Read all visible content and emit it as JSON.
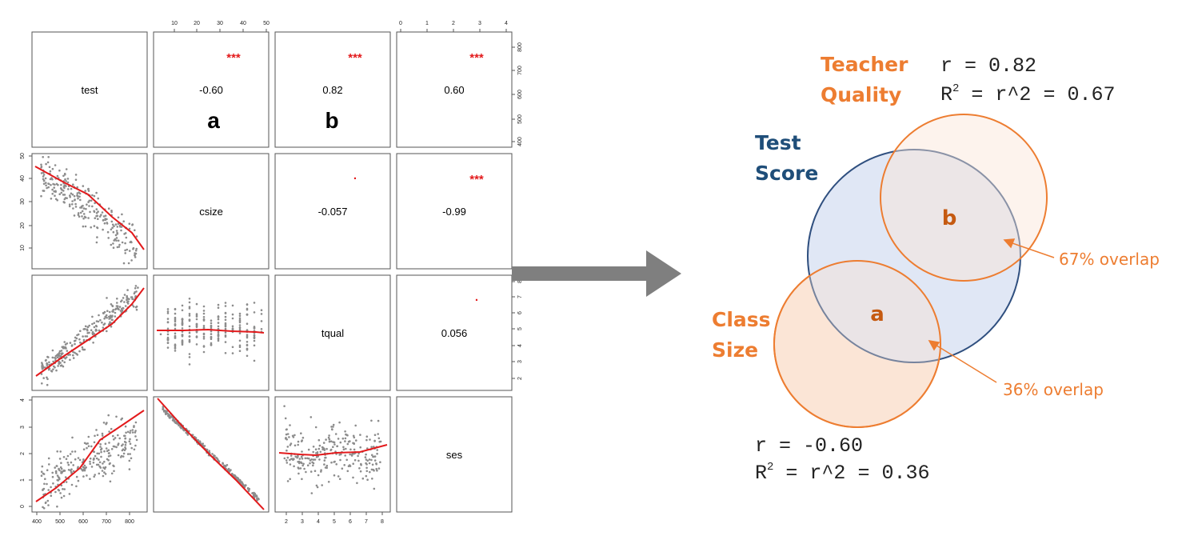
{
  "colors": {
    "orange": "#ED7D31",
    "orange_fill": "#FBE5D6",
    "navy": "#1F4E79",
    "navy_stroke": "#2F4F7F",
    "blue_fill": "#DAE3F3",
    "letter_brown": "#C55A11",
    "arrow_gray": "#7F7F7F",
    "point_gray": "#8C8C8C",
    "curve_red": "#E31A1C",
    "star_red": "#E31A1C"
  },
  "pairs_plot": {
    "variables": [
      "test",
      "csize",
      "tqual",
      "ses"
    ],
    "correlations": {
      "test_csize": {
        "value": "-0.60",
        "stars": "***"
      },
      "test_tqual": {
        "value": "0.82",
        "stars": "***"
      },
      "test_ses": {
        "value": "0.60",
        "stars": "***"
      },
      "csize_tqual": {
        "value": "-0.057",
        "stars": "."
      },
      "csize_ses": {
        "value": "-0.99",
        "stars": "***"
      },
      "tqual_ses": {
        "value": "0.056",
        "stars": "."
      }
    },
    "annotations": {
      "a": "a",
      "b": "b"
    },
    "axis_ticks": {
      "top_csize": [
        "10",
        "20",
        "30",
        "40",
        "50"
      ],
      "top_ses": [
        "0",
        "1",
        "2",
        "3",
        "4"
      ],
      "right_test": [
        "400",
        "500",
        "600",
        "700",
        "800"
      ],
      "right_tqual": [
        "2",
        "3",
        "4",
        "5",
        "6",
        "7",
        "8"
      ],
      "left_csize": [
        "10",
        "20",
        "30",
        "40",
        "50"
      ],
      "left_ses": [
        "0",
        "1",
        "2",
        "3",
        "4"
      ],
      "bottom_test": [
        "400",
        "500",
        "600",
        "700",
        "800"
      ],
      "bottom_tqual": [
        "2",
        "3",
        "4",
        "5",
        "6",
        "7",
        "8"
      ]
    }
  },
  "venn": {
    "teacher_label": [
      "Teacher",
      "Quality"
    ],
    "test_label": [
      "Test",
      "Score"
    ],
    "class_label": [
      "Class",
      "Size"
    ],
    "letter_b": "b",
    "letter_a": "a",
    "overlap_b": "67% overlap",
    "overlap_a": "36% overlap",
    "stats_top": {
      "r": "r = 0.82",
      "R_prefix": "R",
      "R_sup": "2",
      "R_rest": " = r^2 = 0.67"
    },
    "stats_bottom": {
      "r": "r = -0.60",
      "R_prefix": "R",
      "R_sup": "2",
      "R_rest": " = r^2 = 0.36"
    }
  }
}
